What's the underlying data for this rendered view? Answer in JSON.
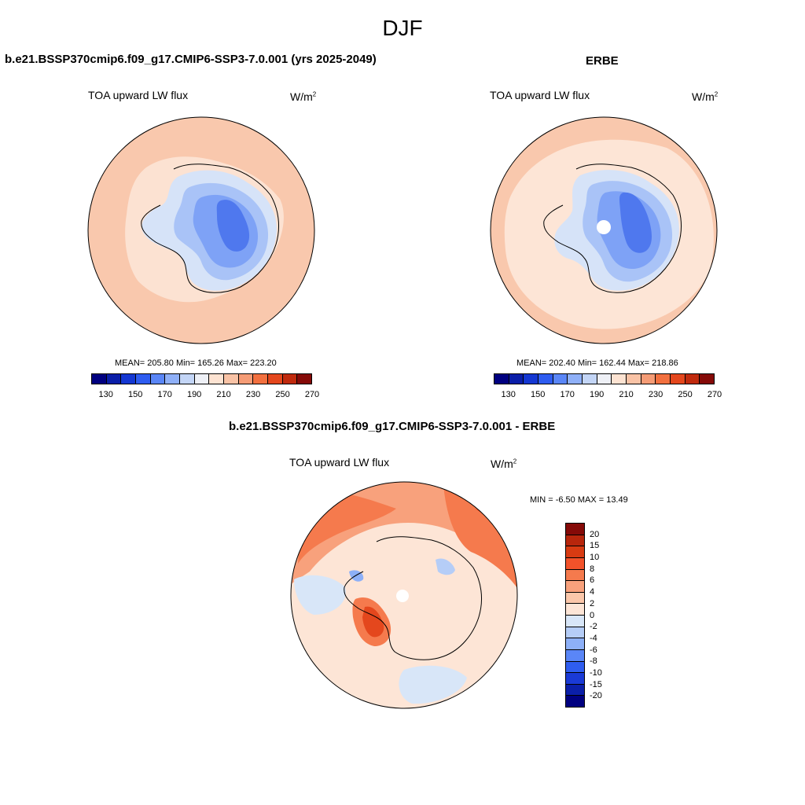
{
  "figure_title": "DJF",
  "panels": {
    "model": {
      "title": "b.e21.BSSP370cmip6.f09_g17.CMIP6-SSP3-7.0.001 (yrs 2025-2049)",
      "variable": "TOA upward LW flux",
      "units": "W/m",
      "units_sup": "2",
      "stats": "MEAN= 205.80  Min= 165.26  Max= 223.20"
    },
    "obs": {
      "title": "ERBE",
      "variable": "TOA upward LW flux",
      "units": "W/m",
      "units_sup": "2",
      "stats": "MEAN= 202.40  Min= 162.44  Max= 218.86"
    },
    "diff": {
      "title": "b.e21.BSSP370cmip6.f09_g17.CMIP6-SSP3-7.0.001 - ERBE",
      "variable": "TOA upward LW flux",
      "units": "W/m",
      "units_sup": "2",
      "stats": "MIN =  -6.50 MAX =  13.49"
    }
  },
  "abs_colorbar": {
    "tick_labels": [
      "130",
      "150",
      "170",
      "190",
      "210",
      "230",
      "250",
      "270"
    ],
    "colors": [
      "#000080",
      "#0a1ea8",
      "#1437d2",
      "#2e5cf0",
      "#5a86f7",
      "#8fb0f8",
      "#c3d5f6",
      "#eef0f6",
      "#fde3d2",
      "#f9c3a6",
      "#f59c76",
      "#f2703f",
      "#e4471d",
      "#c02a0d",
      "#850a08"
    ]
  },
  "diff_colorbar": {
    "tick_labels": [
      "20",
      "15",
      "10",
      "8",
      "6",
      "4",
      "2",
      "0",
      "-2",
      "-4",
      "-6",
      "-8",
      "-10",
      "-15",
      "-20"
    ],
    "colors": [
      "#850a08",
      "#b8260c",
      "#d83b12",
      "#f2522a",
      "#f57a4d",
      "#f8a17c",
      "#fbc7aa",
      "#fde5d6",
      "#d8e6f8",
      "#b5cdf7",
      "#8db0f8",
      "#5a86f7",
      "#2f5df0",
      "#1a3ad6",
      "#0b1fa9",
      "#000080"
    ]
  }
}
